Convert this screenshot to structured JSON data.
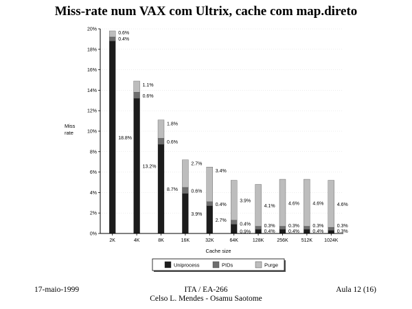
{
  "slide": {
    "title": "Miss-rate num VAX com Ultrix, cache com map.direto",
    "footer_left": "17-maio-1999",
    "footer_center_line1": "ITA / EA-266",
    "footer_center_line2": "Celso L. Mendes - Osamu Saotome",
    "footer_right": "Aula 12 (16)"
  },
  "colors": {
    "uniprocess": "#1c1c1c",
    "pids": "#6e6e6e",
    "purge": "#bdbdbd"
  },
  "chart_data": {
    "type": "bar",
    "stacked": true,
    "ylabel": "Miss rate",
    "xlabel": "Cache size",
    "ylim": [
      0,
      20
    ],
    "yticks": [
      "0%",
      "2%",
      "4%",
      "6%",
      "8%",
      "10%",
      "12%",
      "14%",
      "16%",
      "18%",
      "20%"
    ],
    "categories": [
      "2K",
      "4K",
      "8K",
      "16K",
      "32K",
      "64K",
      "128K",
      "256K",
      "512K",
      "1024K"
    ],
    "series": [
      {
        "name": "Uniprocess",
        "values": [
          18.8,
          13.2,
          8.7,
          3.9,
          2.7,
          0.9,
          0.4,
          0.4,
          0.4,
          0.3
        ],
        "labels": [
          "18.8%",
          "13.2%",
          "8.7%",
          "3.9%",
          "2.7%",
          "0.9%",
          "0.4%",
          "0.4%",
          "0.4%",
          "0.3%"
        ]
      },
      {
        "name": "PIDs",
        "values": [
          0.4,
          0.6,
          0.6,
          0.6,
          0.4,
          0.4,
          0.3,
          0.3,
          0.3,
          0.3
        ],
        "labels": [
          "0.4%",
          "0.6%",
          "0.6%",
          "0.6%",
          "0.4%",
          "0.4%",
          "0.3%",
          "0.3%",
          "0.3%",
          "0.3%"
        ]
      },
      {
        "name": "Purge",
        "values": [
          0.6,
          1.1,
          1.8,
          2.7,
          3.4,
          3.9,
          4.1,
          4.6,
          4.6,
          4.6
        ],
        "labels": [
          "0.6%",
          "1.1%",
          "1.8%",
          "2.7%",
          "3.4%",
          "3.9%",
          "4.1%",
          "4.6%",
          "4.6%",
          "4.6%"
        ]
      }
    ],
    "legend_position": "bottom"
  }
}
